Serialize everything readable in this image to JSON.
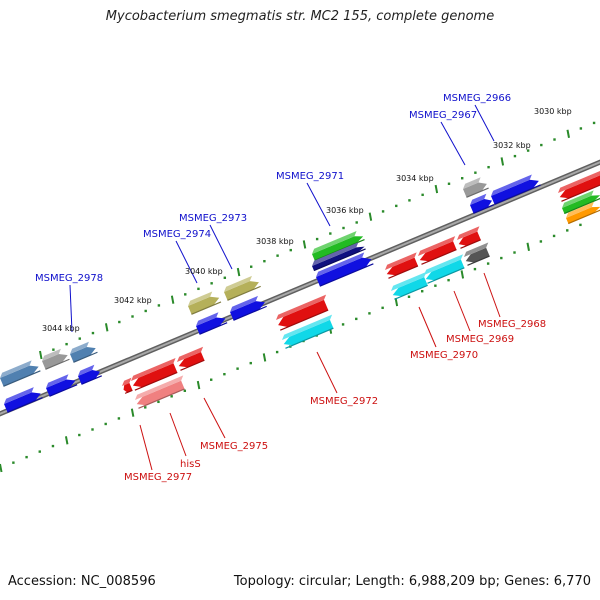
{
  "map": {
    "title": "Mycobacterium smegmatis str. MC2 155, complete genome",
    "accession_text": "Accession: NC_008596",
    "summary_text": "Topology: circular; Length: 6,988,209 bp; Genes: 6,770"
  },
  "ticks": [
    {
      "label": "3030 kbp",
      "kbp": 3030
    },
    {
      "label": "3032 kbp",
      "kbp": 3032
    },
    {
      "label": "3034 kbp",
      "kbp": 3034
    },
    {
      "label": "3036 kbp",
      "kbp": 3036
    },
    {
      "label": "3038 kbp",
      "kbp": 3038
    },
    {
      "label": "3040 kbp",
      "kbp": 3040
    },
    {
      "label": "3042 kbp",
      "kbp": 3042
    },
    {
      "label": "3044 kbp",
      "kbp": 3044
    }
  ],
  "gene_labels_forward": [
    "MSMEG_2966",
    "MSMEG_2967",
    "MSMEG_2971",
    "MSMEG_2973",
    "MSMEG_2974",
    "MSMEG_2978"
  ],
  "gene_labels_reverse": [
    "MSMEG_2968",
    "MSMEG_2969",
    "MSMEG_2970",
    "MSMEG_2972",
    "MSMEG_2975",
    "hisS",
    "MSMEG_2977"
  ],
  "colors": {
    "forward_label": "#1010cc",
    "reverse_label": "#cc1010",
    "forward_gene": "#1010e0",
    "reverse_gene": "#e01010",
    "cyan_gene": "#10d8e8",
    "green_gene": "#22bb22",
    "olive_gene": "#b5b05a",
    "steel_gene": "#5080b0",
    "grey_gene": "#999999",
    "backbone": "#808080",
    "tick_green": "#2a8a2a"
  }
}
